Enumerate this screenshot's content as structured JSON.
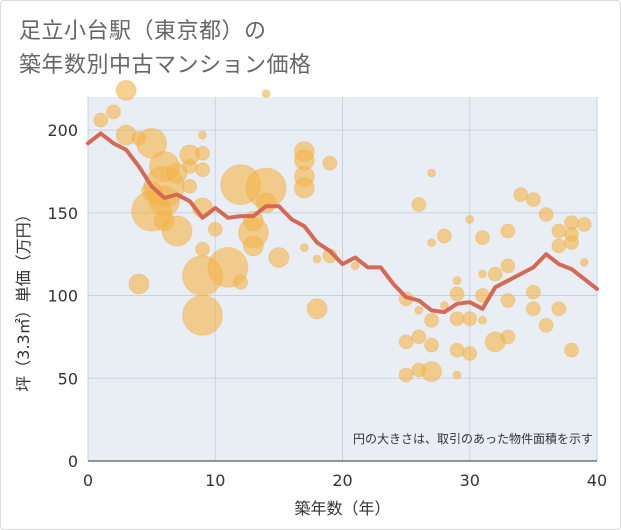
{
  "title": {
    "line1": "足立小台駅（東京都）の",
    "line2": "築年数別中古マンション価格"
  },
  "colors": {
    "bubble": "#f3b44a",
    "line": "#d46a55",
    "grid": "#c9d3e0",
    "plot_bg": "#e9eef5"
  },
  "chart_data": {
    "type": "scatter",
    "title": "足立小台駅（東京都）の築年数別中古マンション価格",
    "xlabel": "築年数（年）",
    "ylabel": "坪（3.3㎡）単価（万円）",
    "xlim": [
      0,
      40
    ],
    "ylim": [
      0,
      220
    ],
    "xticks": [
      0,
      10,
      20,
      30,
      40
    ],
    "yticks": [
      0,
      50,
      100,
      150,
      200
    ],
    "grid": true,
    "note": "円の大きさは、取引のあった物件面積を示す",
    "series": [
      {
        "type": "bubble",
        "points": [
          {
            "x": 1,
            "y": 206,
            "s": 2
          },
          {
            "x": 2,
            "y": 211,
            "s": 2
          },
          {
            "x": 3,
            "y": 224,
            "s": 3
          },
          {
            "x": 3,
            "y": 197,
            "s": 3
          },
          {
            "x": 4,
            "y": 195,
            "s": 2
          },
          {
            "x": 5,
            "y": 192,
            "s": 4
          },
          {
            "x": 5,
            "y": 163,
            "s": 3
          },
          {
            "x": 5,
            "y": 151,
            "s": 5
          },
          {
            "x": 6,
            "y": 178,
            "s": 4
          },
          {
            "x": 6,
            "y": 166,
            "s": 5
          },
          {
            "x": 6,
            "y": 157,
            "s": 4
          },
          {
            "x": 6,
            "y": 145,
            "s": 3
          },
          {
            "x": 4,
            "y": 107,
            "s": 3
          },
          {
            "x": 7,
            "y": 139,
            "s": 4
          },
          {
            "x": 7,
            "y": 174,
            "s": 3
          },
          {
            "x": 8,
            "y": 185,
            "s": 3
          },
          {
            "x": 8,
            "y": 178,
            "s": 2
          },
          {
            "x": 8,
            "y": 166,
            "s": 2
          },
          {
            "x": 9,
            "y": 197,
            "s": 1
          },
          {
            "x": 9,
            "y": 186,
            "s": 2
          },
          {
            "x": 9,
            "y": 176,
            "s": 2
          },
          {
            "x": 9,
            "y": 153,
            "s": 3
          },
          {
            "x": 9,
            "y": 128,
            "s": 2
          },
          {
            "x": 9,
            "y": 112,
            "s": 5
          },
          {
            "x": 9,
            "y": 88,
            "s": 5
          },
          {
            "x": 10,
            "y": 140,
            "s": 2
          },
          {
            "x": 11,
            "y": 117,
            "s": 5
          },
          {
            "x": 12,
            "y": 167,
            "s": 5
          },
          {
            "x": 12,
            "y": 108,
            "s": 2
          },
          {
            "x": 13,
            "y": 145,
            "s": 3
          },
          {
            "x": 13,
            "y": 138,
            "s": 4
          },
          {
            "x": 13,
            "y": 130,
            "s": 3
          },
          {
            "x": 14,
            "y": 222,
            "s": 1
          },
          {
            "x": 14,
            "y": 165,
            "s": 5
          },
          {
            "x": 14,
            "y": 156,
            "s": 3
          },
          {
            "x": 15,
            "y": 123,
            "s": 3
          },
          {
            "x": 17,
            "y": 187,
            "s": 3
          },
          {
            "x": 17,
            "y": 182,
            "s": 3
          },
          {
            "x": 17,
            "y": 172,
            "s": 3
          },
          {
            "x": 17,
            "y": 165,
            "s": 3
          },
          {
            "x": 17,
            "y": 129,
            "s": 1
          },
          {
            "x": 18,
            "y": 122,
            "s": 1
          },
          {
            "x": 18,
            "y": 92,
            "s": 3
          },
          {
            "x": 19,
            "y": 180,
            "s": 2
          },
          {
            "x": 19,
            "y": 124,
            "s": 2
          },
          {
            "x": 21,
            "y": 118,
            "s": 1
          },
          {
            "x": 25,
            "y": 98,
            "s": 2
          },
          {
            "x": 25,
            "y": 72,
            "s": 2
          },
          {
            "x": 25,
            "y": 52,
            "s": 2
          },
          {
            "x": 26,
            "y": 155,
            "s": 2
          },
          {
            "x": 26,
            "y": 91,
            "s": 1
          },
          {
            "x": 26,
            "y": 75,
            "s": 2
          },
          {
            "x": 26,
            "y": 55,
            "s": 2
          },
          {
            "x": 27,
            "y": 174,
            "s": 1
          },
          {
            "x": 27,
            "y": 132,
            "s": 1
          },
          {
            "x": 27,
            "y": 85,
            "s": 2
          },
          {
            "x": 27,
            "y": 70,
            "s": 2
          },
          {
            "x": 27,
            "y": 54,
            "s": 3
          },
          {
            "x": 28,
            "y": 136,
            "s": 2
          },
          {
            "x": 28,
            "y": 94,
            "s": 1
          },
          {
            "x": 29,
            "y": 109,
            "s": 1
          },
          {
            "x": 29,
            "y": 101,
            "s": 2
          },
          {
            "x": 29,
            "y": 86,
            "s": 2
          },
          {
            "x": 29,
            "y": 67,
            "s": 2
          },
          {
            "x": 29,
            "y": 52,
            "s": 1
          },
          {
            "x": 30,
            "y": 146,
            "s": 1
          },
          {
            "x": 30,
            "y": 86,
            "s": 2
          },
          {
            "x": 30,
            "y": 65,
            "s": 2
          },
          {
            "x": 31,
            "y": 135,
            "s": 2
          },
          {
            "x": 31,
            "y": 113,
            "s": 1
          },
          {
            "x": 31,
            "y": 100,
            "s": 2
          },
          {
            "x": 31,
            "y": 85,
            "s": 1
          },
          {
            "x": 32,
            "y": 113,
            "s": 2
          },
          {
            "x": 32,
            "y": 72,
            "s": 3
          },
          {
            "x": 33,
            "y": 118,
            "s": 2
          },
          {
            "x": 33,
            "y": 97,
            "s": 2
          },
          {
            "x": 33,
            "y": 75,
            "s": 2
          },
          {
            "x": 33,
            "y": 139,
            "s": 2
          },
          {
            "x": 34,
            "y": 161,
            "s": 2
          },
          {
            "x": 35,
            "y": 158,
            "s": 2
          },
          {
            "x": 35,
            "y": 102,
            "s": 2
          },
          {
            "x": 35,
            "y": 92,
            "s": 2
          },
          {
            "x": 36,
            "y": 149,
            "s": 2
          },
          {
            "x": 36,
            "y": 82,
            "s": 2
          },
          {
            "x": 37,
            "y": 139,
            "s": 2
          },
          {
            "x": 37,
            "y": 130,
            "s": 2
          },
          {
            "x": 37,
            "y": 92,
            "s": 2
          },
          {
            "x": 38,
            "y": 144,
            "s": 2
          },
          {
            "x": 38,
            "y": 137,
            "s": 2
          },
          {
            "x": 38,
            "y": 132,
            "s": 2
          },
          {
            "x": 38,
            "y": 67,
            "s": 2
          },
          {
            "x": 39,
            "y": 143,
            "s": 2
          },
          {
            "x": 39,
            "y": 120,
            "s": 1
          }
        ]
      },
      {
        "type": "line",
        "x": [
          0,
          1,
          2,
          3,
          4,
          5,
          6,
          7,
          8,
          9,
          10,
          11,
          12,
          13,
          14,
          15,
          16,
          17,
          18,
          19,
          20,
          21,
          22,
          23,
          24,
          25,
          26,
          27,
          28,
          29,
          30,
          31,
          32,
          33,
          34,
          35,
          36,
          37,
          38,
          39,
          40
        ],
        "y": [
          192,
          198,
          192,
          188,
          178,
          166,
          159,
          161,
          157,
          147,
          153,
          147,
          148,
          148,
          154,
          154,
          146,
          142,
          132,
          127,
          119,
          123,
          117,
          117,
          107,
          99,
          97,
          91,
          90,
          95,
          96,
          92,
          105,
          109,
          113,
          117,
          125,
          119,
          116,
          110,
          104
        ]
      }
    ]
  }
}
